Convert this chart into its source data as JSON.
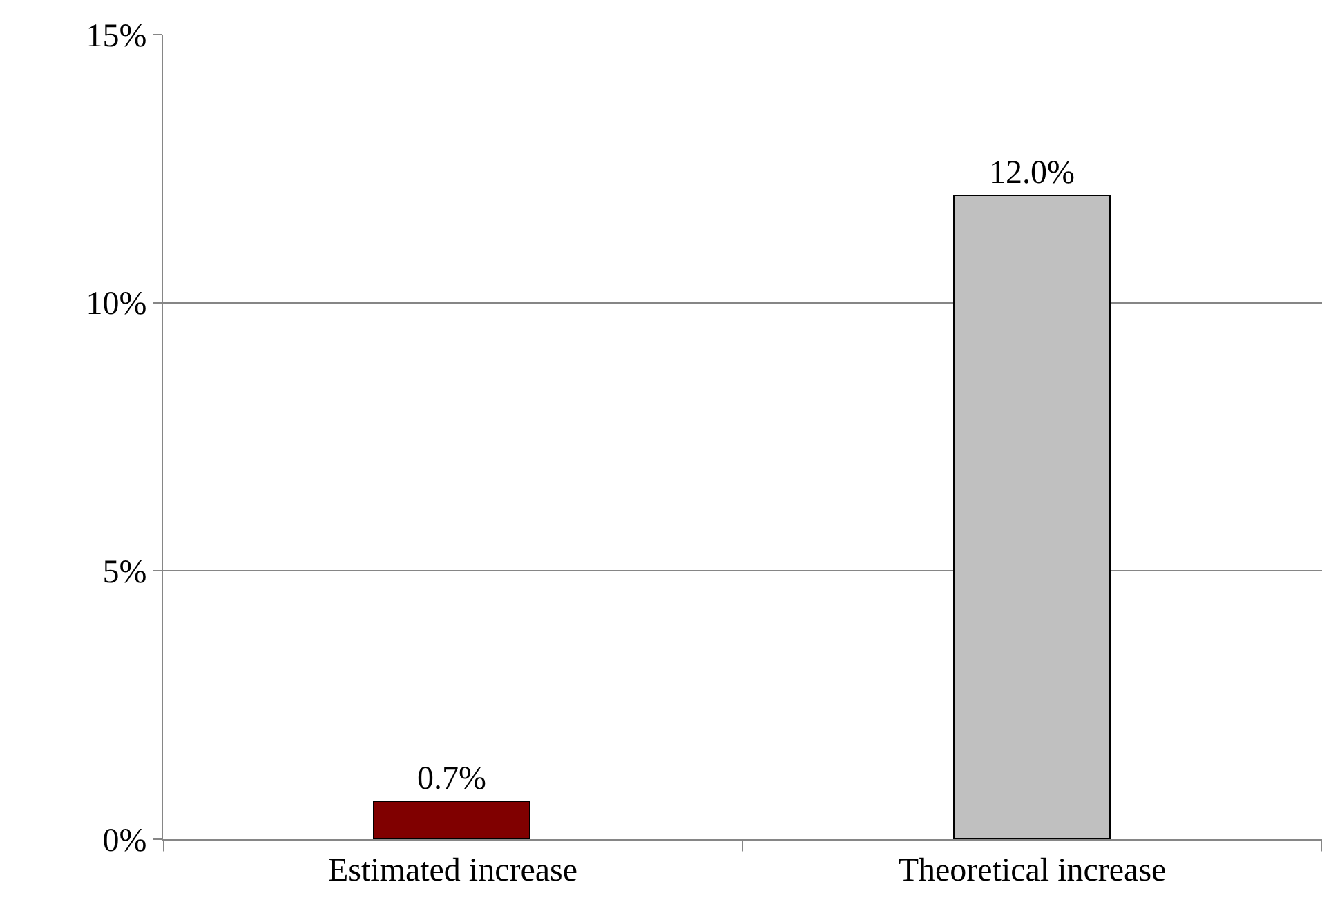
{
  "chart_data": {
    "type": "bar",
    "categories": [
      "Estimated increase",
      "Theoretical increase"
    ],
    "values": [
      0.7,
      12.0
    ],
    "colors": [
      "#800000",
      "#c0c0c0"
    ],
    "value_labels": [
      "0.7%",
      "12.0%"
    ],
    "ylim": [
      0,
      15
    ],
    "yticks": [
      {
        "value": 0,
        "label": "0%"
      },
      {
        "value": 5,
        "label": "5%"
      },
      {
        "value": 10,
        "label": "10%"
      },
      {
        "value": 15,
        "label": "15%"
      }
    ],
    "grid": "y",
    "legend": false
  }
}
